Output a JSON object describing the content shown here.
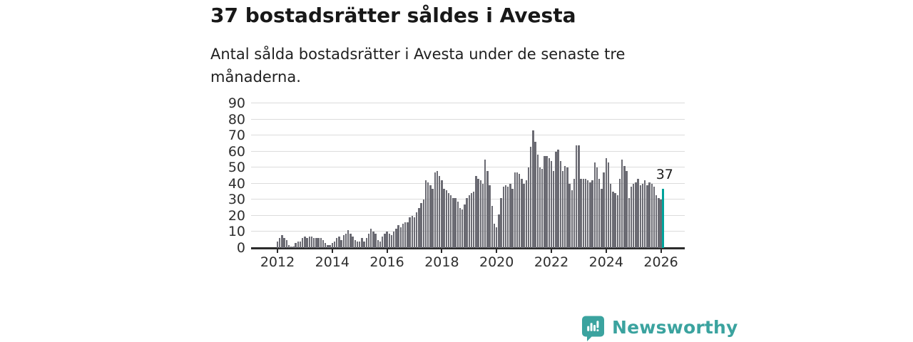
{
  "header": {
    "title": "37 bostadsrätter såldes i Avesta",
    "subtitle": "Antal sålda bostadsrätter i Avesta under de senaste tre månaderna."
  },
  "annotation": {
    "last_value_label": "37"
  },
  "footer": {
    "brand": "Newsworthy",
    "logo_icon": "newsworthy-speech-bubble-chart-icon"
  },
  "colors": {
    "bar": "#6b6b73",
    "accent": "#00a39b",
    "brand": "#3ba39f",
    "grid": "#dcdcdc",
    "axis": "#2b2b2b",
    "text": "#181818"
  },
  "chart_data": {
    "type": "bar",
    "title": "37 bostadsrätter såldes i Avesta",
    "subtitle": "Antal sålda bostadsrätter i Avesta under de senaste tre månaderna.",
    "frequency": "monthly",
    "x_start": "2012-01",
    "x_end": "2026-02",
    "ylim": [
      0,
      90
    ],
    "ytick_step": 10,
    "yticks": [
      0,
      10,
      20,
      30,
      40,
      50,
      60,
      70,
      80,
      90
    ],
    "xticks": [
      "2012",
      "2014",
      "2016",
      "2018",
      "2020",
      "2022",
      "2024",
      "2026"
    ],
    "grid": true,
    "legend": false,
    "highlight_last": true,
    "last_value": 37,
    "values": [
      4,
      6,
      8,
      6,
      5,
      2,
      1,
      1,
      3,
      4,
      4,
      6,
      7,
      6,
      7,
      7,
      6,
      6,
      6,
      6,
      5,
      3,
      2,
      2,
      3,
      4,
      6,
      7,
      5,
      8,
      9,
      11,
      9,
      7,
      5,
      4,
      4,
      6,
      4,
      6,
      9,
      12,
      10,
      9,
      5,
      4,
      7,
      9,
      10,
      9,
      8,
      10,
      12,
      14,
      13,
      15,
      16,
      16,
      19,
      20,
      19,
      22,
      25,
      28,
      30,
      42,
      41,
      39,
      37,
      47,
      48,
      45,
      42,
      37,
      36,
      34,
      33,
      31,
      31,
      29,
      25,
      24,
      27,
      31,
      33,
      34,
      35,
      45,
      43,
      42,
      40,
      55,
      48,
      39,
      26,
      15,
      13,
      21,
      31,
      38,
      39,
      38,
      40,
      37,
      47,
      47,
      46,
      43,
      40,
      42,
      50,
      63,
      73,
      66,
      58,
      50,
      49,
      57,
      57,
      56,
      54,
      48,
      60,
      61,
      54,
      48,
      51,
      50,
      40,
      36,
      43,
      64,
      64,
      43,
      43,
      43,
      42,
      41,
      42,
      53,
      50,
      43,
      37,
      47,
      56,
      53,
      40,
      35,
      34,
      33,
      43,
      55,
      51,
      48,
      31,
      38,
      40,
      41,
      43,
      39,
      40,
      42,
      39,
      41,
      40,
      38,
      33,
      31,
      30,
      37
    ]
  }
}
